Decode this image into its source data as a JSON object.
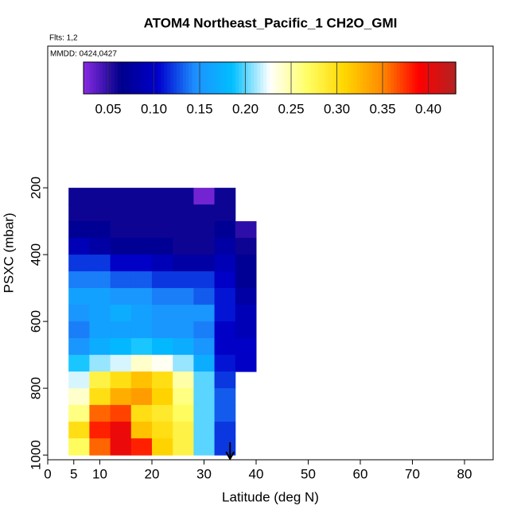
{
  "chart_data": {
    "type": "curtain",
    "title": "ATOM4 Northeast_Pacific_1 CH2O_GMI",
    "subtitle": "Flts: 1,2",
    "annotation": "MMDD: 0424,0427",
    "x_label": "Latitude (deg N)",
    "y_label": "PSXC (mbar)",
    "xlim": [
      0,
      85.5
    ],
    "xticks": [
      0,
      5,
      10,
      20,
      30,
      40,
      50,
      60,
      70,
      80
    ],
    "ylim": [
      1014,
      -224
    ],
    "yticks": [
      200,
      400,
      600,
      800,
      1000
    ],
    "latitude_bins": [
      4,
      8,
      12,
      16,
      20,
      24,
      28,
      32,
      36,
      40
    ],
    "pressure_bins": [
      200,
      250,
      300,
      350,
      400,
      450,
      500,
      550,
      600,
      650,
      700,
      750,
      800,
      850,
      900,
      950,
      1000
    ],
    "values": [
      [
        0.06,
        0.06,
        0.06,
        0.06,
        0.06,
        0.06,
        0.03,
        0.06,
        null
      ],
      [
        0.06,
        0.06,
        0.06,
        0.06,
        0.06,
        0.06,
        0.06,
        0.06,
        null
      ],
      [
        0.07,
        0.07,
        0.06,
        0.06,
        0.06,
        0.06,
        0.06,
        0.07,
        0.05
      ],
      [
        0.09,
        0.08,
        0.07,
        0.07,
        0.07,
        0.06,
        0.06,
        0.08,
        0.06
      ],
      [
        0.12,
        0.12,
        0.1,
        0.1,
        0.09,
        0.08,
        0.08,
        0.09,
        0.07
      ],
      [
        0.14,
        0.14,
        0.13,
        0.13,
        0.12,
        0.12,
        0.12,
        0.1,
        0.07
      ],
      [
        0.16,
        0.16,
        0.15,
        0.15,
        0.14,
        0.14,
        0.13,
        0.11,
        0.08
      ],
      [
        0.15,
        0.16,
        0.17,
        0.16,
        0.15,
        0.15,
        0.15,
        0.11,
        0.09
      ],
      [
        0.14,
        0.16,
        0.16,
        0.16,
        0.15,
        0.15,
        0.14,
        0.1,
        0.09
      ],
      [
        0.15,
        0.17,
        0.18,
        0.19,
        0.18,
        0.17,
        0.15,
        0.1,
        0.1
      ],
      [
        0.19,
        0.21,
        0.22,
        0.24,
        0.23,
        0.21,
        0.17,
        0.11,
        0.1
      ],
      [
        0.22,
        0.28,
        0.3,
        0.32,
        0.3,
        0.25,
        0.2,
        0.12,
        null
      ],
      [
        0.24,
        0.3,
        0.33,
        0.34,
        0.31,
        0.26,
        0.2,
        0.13,
        null
      ],
      [
        0.26,
        0.36,
        0.37,
        0.3,
        0.29,
        0.27,
        0.2,
        0.13,
        null
      ],
      [
        0.3,
        0.38,
        0.4,
        0.32,
        0.3,
        0.28,
        0.2,
        0.12,
        null
      ],
      [
        0.27,
        0.36,
        0.4,
        0.38,
        0.31,
        0.28,
        0.2,
        0.12,
        null
      ]
    ],
    "colorbar_lim": [
      0.023,
      0.43
    ],
    "colorbar_ticks": [
      0.05,
      {
        "value": 0.1,
        "label": "0.10"
      },
      0.15,
      {
        "value": 0.2,
        "label": "0.20"
      },
      0.25,
      {
        "value": 0.3,
        "label": "0.30"
      },
      0.35,
      {
        "value": 0.4,
        "label": "0.40"
      }
    ],
    "colorscale": [
      "#8a2be2",
      "#00008b",
      "#0000cd",
      "#1e90ff",
      "#00bfff",
      "#ffffff",
      "#ffff66",
      "#ffd700",
      "#ff8c00",
      "#ff0000",
      "#b22222"
    ],
    "marker_latitude": 35
  }
}
